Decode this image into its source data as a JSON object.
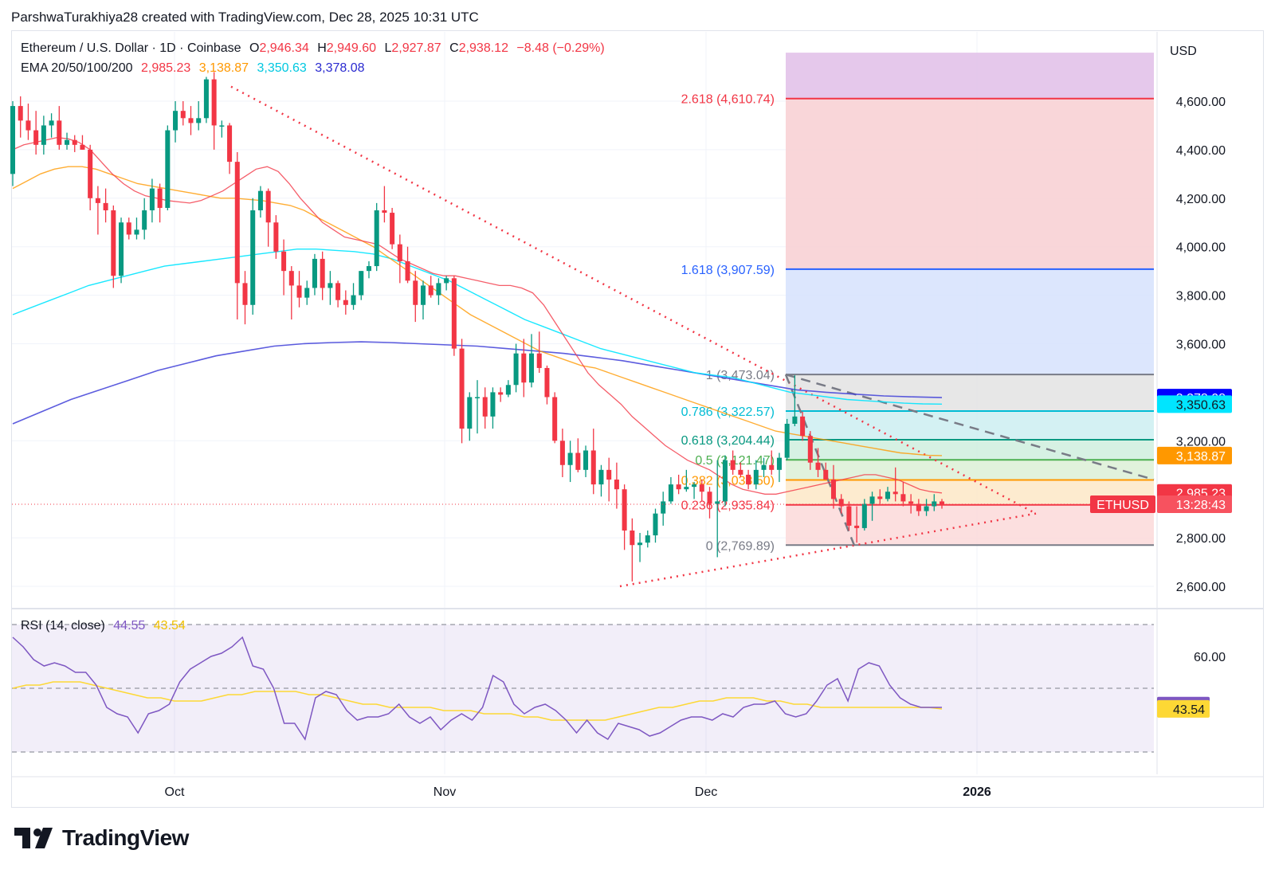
{
  "header": {
    "author_line": "ParshwaTurakhiya28 created with TradingView.com, Dec 28, 2025 10:31 UTC"
  },
  "legend": {
    "symbol": "Ethereum / U.S. Dollar · 1D · Coinbase",
    "open_label": "O",
    "open": "2,946.34",
    "high_label": "H",
    "high": "2,949.60",
    "low_label": "L",
    "low": "2,927.87",
    "close_label": "C",
    "close": "2,938.12",
    "change": "−8.48 (−0.29%)",
    "ema_label": "EMA 20/50/100/200",
    "ema20": "2,985.23",
    "ema50": "3,138.87",
    "ema100": "3,350.63",
    "ema200": "3,378.08",
    "rsi_label": "RSI (14, close)",
    "rsi": "44.55",
    "rsi_ma": "43.54"
  },
  "footer": {
    "brand": "TradingView"
  },
  "colors": {
    "up": "#089981",
    "down": "#f23645",
    "ema20": "#f23645",
    "ema50": "#ff9800",
    "ema100": "#00e5ff",
    "ema200": "#3f3fd8",
    "rsi": "#7e57c2",
    "rsi_ma": "#fdd835"
  },
  "chart_data": {
    "type": "candlestick",
    "currency": "USD",
    "y_ticks": [
      "4,600.00",
      "4,400.00",
      "4,200.00",
      "4,000.00",
      "3,800.00",
      "3,600.00",
      "3,200.00",
      "2,800.00",
      "2,600.00"
    ],
    "y_tick_values": [
      4600,
      4400,
      4200,
      4000,
      3800,
      3600,
      3200,
      2800,
      2600
    ],
    "x_labels": [
      "Oct",
      "Nov",
      "Dec",
      "2026"
    ],
    "rsi_ticks": [
      "60.00"
    ],
    "price_badges": [
      {
        "value": 3378.08,
        "text": "3,378.08",
        "color": "#0000ff",
        "fg": "#ffffff"
      },
      {
        "value": 3350.63,
        "text": "3,350.63",
        "color": "#00e5ff",
        "fg": "#131722"
      },
      {
        "value": 3138.87,
        "text": "3,138.87",
        "color": "#ff9800",
        "fg": "#ffffff"
      },
      {
        "value": 2985.23,
        "text": "2,985.23",
        "color": "#f23645",
        "fg": "#ffffff"
      }
    ],
    "last_price": {
      "value": 2938.12,
      "symbol": "ETHUSD",
      "countdown": "13:28:43"
    },
    "rsi_badges": [
      {
        "value": 44.55,
        "text": "44.55",
        "color": "#7e57c2",
        "fg": "#ffffff"
      },
      {
        "value": 43.54,
        "text": "43.54",
        "color": "#fdd835",
        "fg": "#131722"
      }
    ],
    "fib_levels": [
      {
        "ratio": "2.618",
        "price": 4610.74,
        "label": "2.618 (4,610.74)",
        "color": "#f23645"
      },
      {
        "ratio": "1.618",
        "price": 3907.59,
        "label": "1.618 (3,907.59)",
        "color": "#2962ff"
      },
      {
        "ratio": "1",
        "price": 3473.04,
        "label": "1 (3,473.04)",
        "color": "#787b86"
      },
      {
        "ratio": "0.786",
        "price": 3322.57,
        "label": "0.786 (3,322.57)",
        "color": "#00bcd4"
      },
      {
        "ratio": "0.618",
        "price": 3204.44,
        "label": "0.618 (3,204.44)",
        "color": "#089981"
      },
      {
        "ratio": "0.5",
        "price": 3121.47,
        "label": "0.5 (3,121.47)",
        "color": "#4caf50"
      },
      {
        "ratio": "0.382",
        "price": 3038.5,
        "label": "0.382 (3,038.50)",
        "color": "#ff9800"
      },
      {
        "ratio": "0.236",
        "price": 2935.84,
        "label": "0.236 (2,935.84)",
        "color": "#f23645"
      },
      {
        "ratio": "0",
        "price": 2769.89,
        "label": "0 (2,769.89)",
        "color": "#787b86"
      }
    ],
    "fib_zones": [
      {
        "from": 4610.74,
        "to": 4800,
        "color": "#e1bee7"
      },
      {
        "from": 3907.59,
        "to": 4610.74,
        "color": "#f8cfd2"
      },
      {
        "from": 3473.04,
        "to": 3907.59,
        "color": "#d6e2fd"
      },
      {
        "from": 3322.57,
        "to": 3473.04,
        "color": "#e3e3e3"
      },
      {
        "from": 3204.44,
        "to": 3322.57,
        "color": "#cdeff1"
      },
      {
        "from": 3121.47,
        "to": 3204.44,
        "color": "#cfeede"
      },
      {
        "from": 3038.5,
        "to": 3121.47,
        "color": "#dcf0d6"
      },
      {
        "from": 2935.84,
        "to": 3038.5,
        "color": "#fde7c7"
      },
      {
        "from": 2769.89,
        "to": 2935.84,
        "color": "#fbd9d9"
      }
    ],
    "candles": [
      [
        4300,
        4600,
        4250,
        4580
      ],
      [
        4580,
        4620,
        4450,
        4520
      ],
      [
        4520,
        4590,
        4440,
        4480
      ],
      [
        4480,
        4560,
        4380,
        4420
      ],
      [
        4420,
        4540,
        4380,
        4500
      ],
      [
        4500,
        4550,
        4450,
        4520
      ],
      [
        4520,
        4580,
        4400,
        4420
      ],
      [
        4420,
        4470,
        4400,
        4440
      ],
      [
        4440,
        4460,
        4390,
        4420
      ],
      [
        4420,
        4460,
        4400,
        4400
      ],
      [
        4400,
        4420,
        4150,
        4200
      ],
      [
        4200,
        4250,
        4050,
        4180
      ],
      [
        4180,
        4240,
        4100,
        4150
      ],
      [
        4150,
        4170,
        3830,
        3880
      ],
      [
        3880,
        4120,
        3850,
        4100
      ],
      [
        4100,
        4120,
        4030,
        4050
      ],
      [
        4050,
        4120,
        4030,
        4070
      ],
      [
        4070,
        4200,
        4030,
        4150
      ],
      [
        4150,
        4280,
        4100,
        4240
      ],
      [
        4240,
        4260,
        4100,
        4160
      ],
      [
        4160,
        4500,
        4150,
        4480
      ],
      [
        4480,
        4600,
        4430,
        4560
      ],
      [
        4560,
        4600,
        4500,
        4530
      ],
      [
        4530,
        4580,
        4460,
        4510
      ],
      [
        4510,
        4600,
        4480,
        4530
      ],
      [
        4530,
        4700,
        4510,
        4690
      ],
      [
        4690,
        4720,
        4400,
        4500
      ],
      [
        4500,
        4520,
        4450,
        4500
      ],
      [
        4500,
        4510,
        4300,
        4350
      ],
      [
        4350,
        4390,
        3700,
        3850
      ],
      [
        3850,
        3900,
        3680,
        3760
      ],
      [
        3760,
        4200,
        3720,
        4150
      ],
      [
        4150,
        4250,
        4120,
        4230
      ],
      [
        4230,
        4240,
        4000,
        4100
      ],
      [
        4100,
        4130,
        3950,
        3980
      ],
      [
        3980,
        4030,
        3800,
        3900
      ],
      [
        3900,
        3920,
        3700,
        3840
      ],
      [
        3840,
        3900,
        3750,
        3790
      ],
      [
        3790,
        3860,
        3760,
        3830
      ],
      [
        3830,
        3970,
        3800,
        3950
      ],
      [
        3950,
        3980,
        3780,
        3830
      ],
      [
        3830,
        3900,
        3760,
        3850
      ],
      [
        3850,
        3860,
        3750,
        3780
      ],
      [
        3780,
        3820,
        3720,
        3760
      ],
      [
        3760,
        3850,
        3740,
        3800
      ],
      [
        3800,
        3900,
        3780,
        3900
      ],
      [
        3900,
        3940,
        3870,
        3920
      ],
      [
        3920,
        4180,
        3900,
        4150
      ],
      [
        4150,
        4250,
        4100,
        4140
      ],
      [
        4140,
        4160,
        3990,
        4010
      ],
      [
        4010,
        4050,
        3850,
        3940
      ],
      [
        3940,
        4000,
        3850,
        3860
      ],
      [
        3860,
        3900,
        3690,
        3760
      ],
      [
        3760,
        3860,
        3700,
        3840
      ],
      [
        3840,
        3880,
        3790,
        3800
      ],
      [
        3800,
        3870,
        3760,
        3850
      ],
      [
        3850,
        3880,
        3820,
        3870
      ],
      [
        3870,
        3880,
        3550,
        3580
      ],
      [
        3580,
        3620,
        3190,
        3250
      ],
      [
        3250,
        3400,
        3200,
        3380
      ],
      [
        3380,
        3450,
        3230,
        3380
      ],
      [
        3380,
        3420,
        3250,
        3300
      ],
      [
        3300,
        3420,
        3250,
        3400
      ],
      [
        3400,
        3420,
        3360,
        3390
      ],
      [
        3390,
        3450,
        3380,
        3430
      ],
      [
        3430,
        3600,
        3400,
        3560
      ],
      [
        3560,
        3620,
        3380,
        3440
      ],
      [
        3440,
        3640,
        3420,
        3560
      ],
      [
        3560,
        3650,
        3480,
        3500
      ],
      [
        3500,
        3510,
        3350,
        3380
      ],
      [
        3380,
        3400,
        3190,
        3200
      ],
      [
        3200,
        3250,
        3050,
        3100
      ],
      [
        3100,
        3200,
        3030,
        3150
      ],
      [
        3150,
        3210,
        3070,
        3080
      ],
      [
        3080,
        3180,
        3050,
        3160
      ],
      [
        3160,
        3250,
        2980,
        3020
      ],
      [
        3020,
        3100,
        2970,
        3080
      ],
      [
        3080,
        3130,
        2950,
        3040
      ],
      [
        3040,
        3110,
        2920,
        3000
      ],
      [
        3000,
        3020,
        2750,
        2830
      ],
      [
        2830,
        2880,
        2620,
        2770
      ],
      [
        2770,
        2820,
        2700,
        2780
      ],
      [
        2780,
        2830,
        2760,
        2810
      ],
      [
        2810,
        2920,
        2780,
        2900
      ],
      [
        2900,
        2990,
        2850,
        2950
      ],
      [
        2950,
        3050,
        2940,
        3020
      ],
      [
        3020,
        3060,
        2980,
        3000
      ],
      [
        3000,
        3080,
        2990,
        3010
      ],
      [
        3010,
        3030,
        2960,
        3020
      ],
      [
        3020,
        3040,
        2950,
        2990
      ],
      [
        2990,
        3010,
        2880,
        2940
      ],
      [
        2940,
        3120,
        2720,
        2950
      ],
      [
        2950,
        3140,
        2930,
        3120
      ],
      [
        3120,
        3160,
        3060,
        3080
      ],
      [
        3080,
        3110,
        3050,
        3060
      ],
      [
        3060,
        3080,
        3000,
        3020
      ],
      [
        3020,
        3120,
        3000,
        3080
      ],
      [
        3080,
        3130,
        3050,
        3100
      ],
      [
        3100,
        3160,
        3060,
        3080
      ],
      [
        3080,
        3150,
        3030,
        3130
      ],
      [
        3130,
        3290,
        3120,
        3270
      ],
      [
        3270,
        3470,
        3260,
        3300
      ],
      [
        3300,
        3320,
        3200,
        3220
      ],
      [
        3220,
        3240,
        3080,
        3110
      ],
      [
        3110,
        3170,
        3050,
        3080
      ],
      [
        3080,
        3110,
        3050,
        3040
      ],
      [
        3040,
        3100,
        2920,
        2960
      ],
      [
        2960,
        2980,
        2900,
        2930
      ],
      [
        2930,
        2950,
        2830,
        2850
      ],
      [
        2850,
        2930,
        2780,
        2840
      ],
      [
        2840,
        2960,
        2830,
        2940
      ],
      [
        2940,
        2990,
        2870,
        2970
      ],
      [
        2970,
        3000,
        2940,
        2960
      ],
      [
        2960,
        3010,
        2950,
        2990
      ],
      [
        2990,
        3090,
        2950,
        2980
      ],
      [
        2980,
        3030,
        2930,
        2950
      ],
      [
        2950,
        2980,
        2900,
        2940
      ],
      [
        2940,
        2960,
        2890,
        2910
      ],
      [
        2910,
        2960,
        2890,
        2930
      ],
      [
        2930,
        2980,
        2910,
        2950
      ],
      [
        2950,
        2960,
        2920,
        2938
      ]
    ],
    "ema20": [
      4400,
      4420,
      4430,
      4440,
      4450,
      4445,
      4430,
      4400,
      4350,
      4300,
      4260,
      4230,
      4210,
      4200,
      4190,
      4185,
      4180,
      4190,
      4210,
      4230,
      4260,
      4290,
      4320,
      4330,
      4310,
      4260,
      4200,
      4150,
      4100,
      4070,
      4040,
      4030,
      4020,
      4010,
      3980,
      3950,
      3930,
      3910,
      3890,
      3880,
      3880,
      3870,
      3860,
      3850,
      3840,
      3840,
      3830,
      3810,
      3760,
      3690,
      3620,
      3550,
      3480,
      3430,
      3390,
      3350,
      3300,
      3260,
      3220,
      3180,
      3150,
      3120,
      3100,
      3080,
      3050,
      3020,
      3000,
      2990,
      2980,
      2980,
      2990,
      3000,
      3010,
      3020,
      3030,
      3040,
      3050,
      3060,
      3060,
      3050,
      3040,
      3020,
      3000,
      2990,
      2985
    ],
    "ema20_start": 35,
    "ema50": [
      4240,
      4270,
      4300,
      4320,
      4330,
      4330,
      4320,
      4300,
      4280,
      4260,
      4250,
      4240,
      4230,
      4220,
      4210,
      4200,
      4200,
      4195,
      4190,
      4180,
      4170,
      4150,
      4120,
      4090,
      4060,
      4030,
      4000,
      3960,
      3920,
      3880,
      3840,
      3800,
      3760,
      3720,
      3690,
      3660,
      3630,
      3600,
      3570,
      3550,
      3530,
      3510,
      3500,
      3480,
      3460,
      3440,
      3420,
      3400,
      3380,
      3360,
      3340,
      3320,
      3300,
      3280,
      3260,
      3240,
      3230,
      3220,
      3210,
      3200,
      3190,
      3180,
      3170,
      3160,
      3150,
      3145,
      3140,
      3139
    ],
    "ema50_start": 0,
    "ema100": [
      3720,
      3750,
      3780,
      3810,
      3840,
      3860,
      3880,
      3900,
      3920,
      3930,
      3940,
      3950,
      3960,
      3970,
      3980,
      3990,
      3990,
      3985,
      3980,
      3970,
      3950,
      3920,
      3890,
      3860,
      3820,
      3780,
      3740,
      3700,
      3670,
      3640,
      3610,
      3580,
      3560,
      3540,
      3520,
      3500,
      3480,
      3470,
      3460,
      3440,
      3420,
      3400,
      3390,
      3380,
      3370,
      3365,
      3360,
      3355,
      3352,
      3351
    ],
    "ema100_start": 0,
    "ema200": [
      3270,
      3320,
      3370,
      3410,
      3450,
      3490,
      3520,
      3550,
      3570,
      3590,
      3600,
      3605,
      3608,
      3605,
      3600,
      3595,
      3590,
      3580,
      3570,
      3560,
      3545,
      3530,
      3510,
      3490,
      3470,
      3450,
      3430,
      3410,
      3400,
      3392,
      3385,
      3381,
      3378
    ],
    "ema200_start": 0,
    "rsi": [
      66,
      63,
      59,
      57,
      58,
      57,
      55,
      55,
      51,
      44,
      42,
      41,
      36,
      42,
      43,
      45,
      52,
      56,
      58,
      60,
      61,
      63,
      66,
      57,
      56,
      50,
      39,
      39,
      34,
      47,
      49,
      48,
      43,
      40,
      41,
      41,
      42,
      45,
      41,
      39,
      41,
      37,
      40,
      42,
      40,
      44,
      54,
      52,
      45,
      42,
      44,
      45,
      43,
      40,
      36,
      40,
      36,
      34,
      39,
      38,
      37,
      35,
      36,
      38,
      40,
      41,
      41,
      40,
      42,
      41,
      44,
      45,
      45,
      46,
      42,
      41,
      42,
      46,
      51,
      53,
      46,
      56,
      58,
      57,
      51,
      47,
      45,
      44,
      44,
      44
    ],
    "rsi_ma": [
      50,
      51,
      51,
      52,
      52,
      52,
      51,
      50,
      49,
      48,
      47,
      47,
      46,
      46,
      46,
      47,
      48,
      48,
      49,
      49,
      49,
      49,
      48,
      48,
      47,
      46,
      45,
      45,
      44,
      44,
      44,
      44,
      43,
      43,
      43,
      42,
      42,
      42,
      41,
      41,
      40,
      40,
      40,
      40,
      40,
      41,
      42,
      43,
      44,
      44,
      45,
      46,
      46,
      47,
      47,
      47,
      46,
      46,
      45,
      45,
      44,
      44,
      44,
      44,
      44,
      44,
      44,
      44,
      44,
      43.5
    ]
  }
}
